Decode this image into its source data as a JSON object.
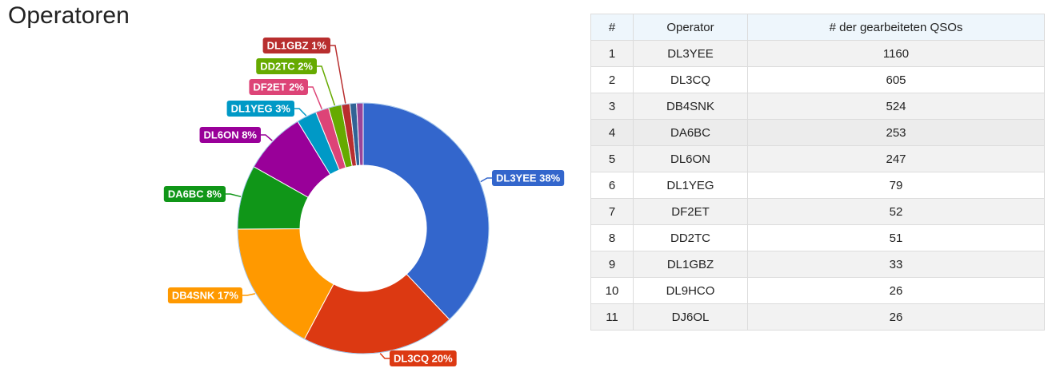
{
  "page": {
    "title": "Operatoren"
  },
  "chart_data": {
    "type": "pie",
    "variant": "donut",
    "slices": [
      {
        "label": "DL3YEE",
        "value": 1160,
        "percent": "38%",
        "color": "#3366cc"
      },
      {
        "label": "DL3CQ",
        "value": 605,
        "percent": "20%",
        "color": "#dc3912"
      },
      {
        "label": "DB4SNK",
        "value": 524,
        "percent": "17%",
        "color": "#ff9900"
      },
      {
        "label": "DA6BC",
        "value": 253,
        "percent": "8%",
        "color": "#109618"
      },
      {
        "label": "DL6ON",
        "value": 247,
        "percent": "8%",
        "color": "#990099"
      },
      {
        "label": "DL1YEG",
        "value": 79,
        "percent": "3%",
        "color": "#0099c6"
      },
      {
        "label": "DF2ET",
        "value": 52,
        "percent": "2%",
        "color": "#dd4477"
      },
      {
        "label": "DD2TC",
        "value": 51,
        "percent": "2%",
        "color": "#66aa00"
      },
      {
        "label": "DL1GBZ",
        "value": 33,
        "percent": "1%",
        "color": "#b82e2e"
      },
      {
        "label": "DL9HCO",
        "value": 26,
        "percent": "",
        "color": "#316395"
      },
      {
        "label": "DJ6OL",
        "value": 26,
        "percent": "",
        "color": "#994499"
      }
    ]
  },
  "table": {
    "headers": [
      "#",
      "Operator",
      "# der gearbeiteten QSOs"
    ],
    "rows": [
      [
        "1",
        "DL3YEE",
        "1160"
      ],
      [
        "2",
        "DL3CQ",
        "605"
      ],
      [
        "3",
        "DB4SNK",
        "524"
      ],
      [
        "4",
        "DA6BC",
        "253"
      ],
      [
        "5",
        "DL6ON",
        "247"
      ],
      [
        "6",
        "DL1YEG",
        "79"
      ],
      [
        "7",
        "DF2ET",
        "52"
      ],
      [
        "8",
        "DD2TC",
        "51"
      ],
      [
        "9",
        "DL1GBZ",
        "33"
      ],
      [
        "10",
        "DL9HCO",
        "26"
      ],
      [
        "11",
        "DJ6OL",
        "26"
      ]
    ]
  }
}
